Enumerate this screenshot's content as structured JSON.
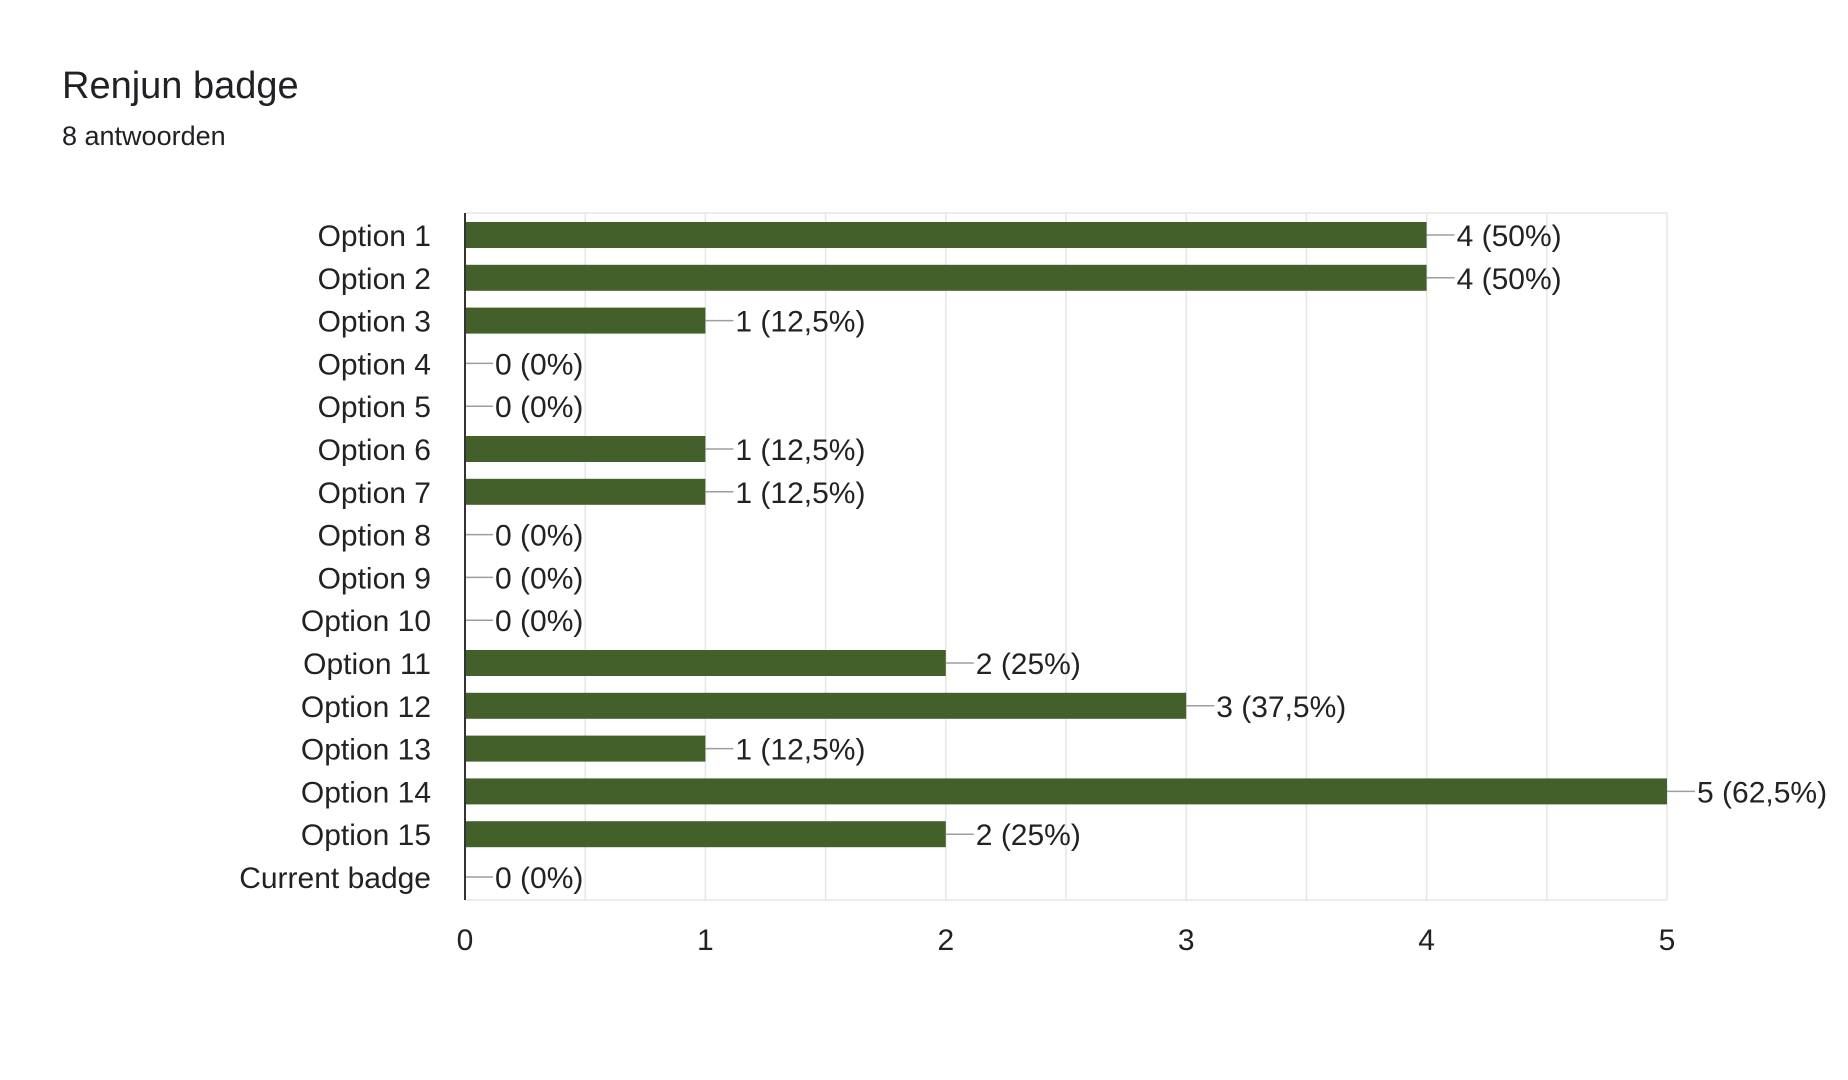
{
  "header": {
    "title": "Renjun badge",
    "responses": "8 antwoorden"
  },
  "colors": {
    "bar": "#43602a",
    "grid": "#e6e6e6",
    "axis": "#333333",
    "leader": "#9e9e9e"
  },
  "chart_data": {
    "type": "bar",
    "orientation": "horizontal",
    "categories": [
      "Option 1",
      "Option 2",
      "Option 3",
      "Option 4",
      "Option 5",
      "Option 6",
      "Option 7",
      "Option 8",
      "Option 9",
      "Option 10",
      "Option 11",
      "Option 12",
      "Option 13",
      "Option 14",
      "Option 15",
      "Current badge"
    ],
    "values": [
      4,
      4,
      1,
      0,
      0,
      1,
      1,
      0,
      0,
      0,
      2,
      3,
      1,
      5,
      2,
      0
    ],
    "data_labels": [
      "4 (50%)",
      "4 (50%)",
      "1 (12,5%)",
      "0 (0%)",
      "0 (0%)",
      "1 (12,5%)",
      "1 (12,5%)",
      "0 (0%)",
      "0 (0%)",
      "0 (0%)",
      "2 (25%)",
      "3 (37,5%)",
      "1 (12,5%)",
      "5 (62,5%)",
      "2 (25%)",
      "0 (0%)"
    ],
    "xlim": [
      0,
      5
    ],
    "xticks": [
      "0",
      "1",
      "2",
      "3",
      "4",
      "5"
    ],
    "grid": true,
    "legend": "none"
  }
}
